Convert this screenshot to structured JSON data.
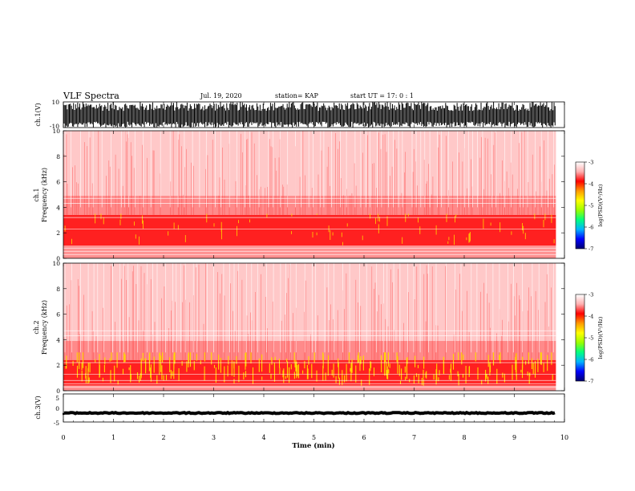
{
  "header": {
    "title": "VLF Spectra",
    "date": "Jul. 19, 2020",
    "station": "station= KAP",
    "start": "start UT =  17: 0  : 1"
  },
  "colorbar": {
    "label": "log(PSD)(V²/Hz)",
    "ticks": [
      "-3",
      "-4",
      "-5",
      "-6",
      "-7"
    ],
    "stops": [
      "#000070",
      "#0000ff",
      "#00b4ff",
      "#00ff80",
      "#9aff00",
      "#ffff00",
      "#ff9a00",
      "#ff0000",
      "#ffb0b0",
      "#ffffff"
    ]
  },
  "panels": {
    "ch1_wave": {
      "ylabel": "ch.1(V)",
      "yticks": [
        "10",
        "-10"
      ],
      "ylim": [
        -10,
        10
      ]
    },
    "ch1_spec": {
      "ylabel_a": "ch.1",
      "ylabel_b": "Frequency (kHz)",
      "yticks": [
        "0",
        "2",
        "4",
        "6",
        "8",
        "10"
      ],
      "band_khz": [
        1.0,
        3.4
      ]
    },
    "ch2_spec": {
      "ylabel_a": "ch.2",
      "ylabel_b": "Frequency (kHz)",
      "yticks": [
        "0",
        "2",
        "4",
        "6",
        "8",
        "10"
      ],
      "band_khz": [
        0.4,
        2.4
      ]
    },
    "ch3_wave": {
      "ylabel": "ch.3(V)",
      "yticks": [
        "5",
        "0",
        "-5"
      ],
      "ylim": [
        -5,
        5
      ],
      "level": -1.8
    }
  },
  "xaxis": {
    "label": "Time (min)",
    "ticks": [
      "0",
      "1",
      "2",
      "3",
      "4",
      "5",
      "6",
      "7",
      "8",
      "9",
      "10"
    ],
    "xlim": [
      0,
      10
    ],
    "data_end": 9.83
  },
  "chart_data": [
    {
      "type": "line",
      "title": "VLF Spectra",
      "ylabel": "ch.1(V)",
      "xlim": [
        0,
        10
      ],
      "ylim": [
        -10,
        10
      ],
      "series": [
        {
          "name": "ch.1",
          "x": [
            0,
            9.83
          ],
          "envelope_max": [
            10,
            10
          ],
          "envelope_min": [
            -10,
            -10
          ]
        }
      ]
    },
    {
      "type": "heatmap",
      "ylabel": "Frequency (kHz)",
      "xlabel": "Time (min)",
      "xlim": [
        0,
        10
      ],
      "ylim": [
        0,
        10
      ],
      "colorbar_range": [
        -7,
        -3
      ],
      "dominant_band_khz": [
        1.0,
        3.4
      ]
    },
    {
      "type": "heatmap",
      "ylabel": "Frequency (kHz)",
      "xlabel": "Time (min)",
      "xlim": [
        0,
        10
      ],
      "ylim": [
        0,
        10
      ],
      "colorbar_range": [
        -7,
        -3
      ],
      "dominant_band_khz": [
        0.4,
        2.4
      ]
    },
    {
      "type": "line",
      "ylabel": "ch.3(V)",
      "xlabel": "Time (min)",
      "xlim": [
        0,
        10
      ],
      "ylim": [
        -5,
        5
      ],
      "series": [
        {
          "name": "ch.3",
          "x": [
            0,
            9.83
          ],
          "y": [
            -1.8,
            -1.8
          ]
        }
      ]
    }
  ]
}
